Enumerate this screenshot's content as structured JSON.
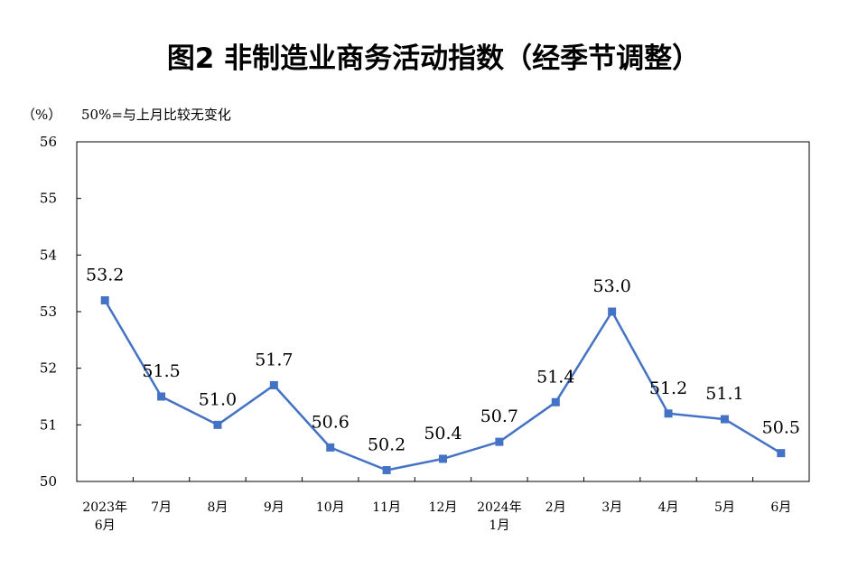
{
  "chart_data": {
    "type": "line",
    "title": "图2 非制造业商务活动指数（经季节调整）",
    "unit_label": "（%）",
    "note": "50%=与上月比较无变化",
    "ylim": [
      50,
      56
    ],
    "yticks": [
      "50",
      "51",
      "52",
      "53",
      "54",
      "55",
      "56"
    ],
    "categories": [
      [
        "2023年",
        "6月"
      ],
      [
        "7月"
      ],
      [
        "8月"
      ],
      [
        "9月"
      ],
      [
        "10月"
      ],
      [
        "11月"
      ],
      [
        "12月"
      ],
      [
        "2024年",
        "1月"
      ],
      [
        "2月"
      ],
      [
        "3月"
      ],
      [
        "4月"
      ],
      [
        "5月"
      ],
      [
        "6月"
      ]
    ],
    "values": [
      53.2,
      51.5,
      51.0,
      51.7,
      50.6,
      50.2,
      50.4,
      50.7,
      51.4,
      53.0,
      51.2,
      51.1,
      50.5
    ],
    "value_labels": [
      "53.2",
      "51.5",
      "51.0",
      "51.7",
      "50.6",
      "50.2",
      "50.4",
      "50.7",
      "51.4",
      "53.0",
      "51.2",
      "51.1",
      "50.5"
    ],
    "grid": false,
    "line_color": "#4472C4"
  }
}
